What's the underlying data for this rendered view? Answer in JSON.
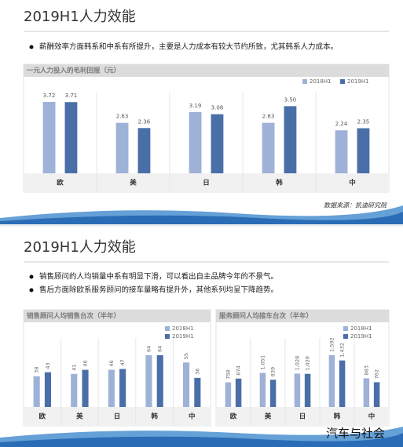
{
  "slides": [
    {
      "title": "2019H1人力效能",
      "bullets": [
        "薪酬效率方面韩系和中系有所提升，主要是人力成本有较大节约所致，尤其韩系人力成本。"
      ],
      "source": "数据来源：凯迪研究院"
    },
    {
      "title": "2019H1人力效能",
      "bullets": [
        "销售顾问的人均销量中系有明显下滑，可以看出自主品牌今年的不景气。",
        "售后方面除欧系服务顾问的接车量略有提升外，其他系列均呈下降趋势。"
      ]
    }
  ],
  "watermark": "汽车与社会",
  "chart_data": [
    {
      "type": "bar",
      "title": "一元人力投入的毛利回报（元）",
      "categories": [
        "欧",
        "美",
        "日",
        "韩",
        "中"
      ],
      "series": [
        {
          "name": "2018H1",
          "color": "#9eb1d7",
          "values": [
            3.72,
            2.63,
            3.19,
            2.63,
            2.24
          ],
          "value_labels": [
            "3.72",
            "2.63",
            "3.19",
            "2.63",
            "2.24"
          ]
        },
        {
          "name": "2019H1",
          "color": "#4a6fa8",
          "values": [
            3.71,
            2.36,
            3.08,
            3.5,
            2.35
          ],
          "value_labels": [
            "3.71",
            "2.36",
            "3.08",
            "3.50",
            "2.35"
          ]
        }
      ]
    },
    {
      "type": "bar",
      "title": "销售顾问人均销售台次（半年）",
      "categories": [
        "欧",
        "美",
        "日",
        "韩",
        "中"
      ],
      "series": [
        {
          "name": "2018H1",
          "color": "#9eb1d7",
          "values": [
            38,
            41,
            46,
            64,
            55
          ]
        },
        {
          "name": "2019H1",
          "color": "#4a6fa8",
          "values": [
            43,
            46,
            47,
            64,
            36
          ]
        }
      ]
    },
    {
      "type": "bar",
      "title": "服务顾问人均接车台次（半年）",
      "categories": [
        "欧",
        "美",
        "日",
        "韩",
        "中"
      ],
      "series": [
        {
          "name": "2018H1",
          "color": "#9eb1d7",
          "values": [
            758,
            1051,
            1028,
            1592,
            883
          ],
          "value_labels": [
            "758",
            "1,051",
            "1,028",
            "1,592",
            "883"
          ]
        },
        {
          "name": "2019H1",
          "color": "#4a6fa8",
          "values": [
            874,
            839,
            1020,
            1432,
            762
          ],
          "value_labels": [
            "874",
            "839",
            "1,020",
            "1,432",
            "762"
          ]
        }
      ]
    }
  ]
}
